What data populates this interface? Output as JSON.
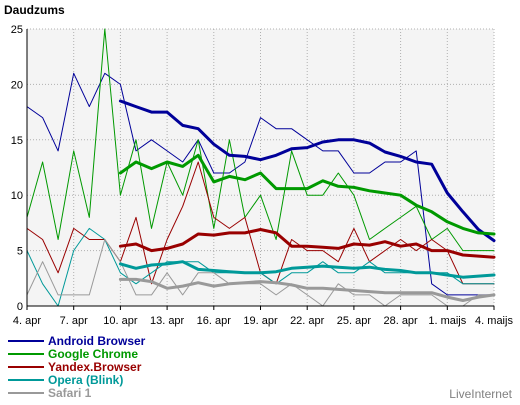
{
  "chart_data": {
    "type": "line",
    "ylabel": "Daudzums",
    "xlabel": "",
    "ylim": [
      0,
      25
    ],
    "yticks": [
      0,
      5,
      10,
      15,
      20,
      25
    ],
    "x": [
      "4. apr",
      "5. apr",
      "6. apr",
      "7. apr",
      "8. apr",
      "9. apr",
      "10. apr",
      "11. apr",
      "12. apr",
      "13. apr",
      "14. apr",
      "15. apr",
      "16. apr",
      "17. apr",
      "18. apr",
      "19. apr",
      "20. apr",
      "21. apr",
      "22. apr",
      "23. apr",
      "24. apr",
      "25. apr",
      "26. apr",
      "27. apr",
      "28. apr",
      "29. apr",
      "30. apr",
      "1. maijs",
      "2. maijs",
      "3. maijs",
      "4. maijs"
    ],
    "xticks": [
      "4. apr",
      "7. apr",
      "10. apr",
      "13. apr",
      "16. apr",
      "19. apr",
      "22. apr",
      "25. apr",
      "28. apr",
      "1. maijs",
      "4. maijs"
    ],
    "grid": true,
    "legend_position": "bottom-left",
    "series": [
      {
        "name": "Android Browser",
        "color": "#000099",
        "daily": [
          18,
          17,
          14,
          21,
          18,
          21,
          20,
          14,
          15,
          14,
          13,
          15,
          12,
          12,
          13,
          17,
          16,
          16,
          15,
          14,
          14,
          12,
          12,
          13,
          13,
          14,
          2,
          1,
          1,
          1,
          1
        ],
        "trend": [
          null,
          null,
          null,
          null,
          null,
          null,
          18.5,
          18,
          17.5,
          17.5,
          16.3,
          16,
          14.6,
          13.6,
          13.5,
          13.2,
          13.6,
          14.2,
          14.3,
          14.8,
          15,
          15,
          14.7,
          13.9,
          13.5,
          13,
          12.8,
          10.2,
          8.5,
          6.9,
          5.9
        ]
      },
      {
        "name": "Google Chrome",
        "color": "#009900",
        "daily": [
          8,
          13,
          6,
          14,
          8,
          25,
          10,
          15,
          7,
          13,
          10,
          15,
          7,
          15,
          8,
          10,
          6,
          14,
          10,
          10,
          12,
          10,
          6,
          7,
          8,
          9,
          6,
          7,
          5,
          5,
          5
        ],
        "trend": [
          null,
          null,
          null,
          null,
          null,
          null,
          12,
          13,
          12.4,
          13,
          12.6,
          13.6,
          11.2,
          11.7,
          11.4,
          12,
          10.6,
          10.6,
          10.6,
          11.3,
          10.8,
          10.7,
          10.4,
          10.2,
          10,
          9.1,
          8.5,
          7.6,
          7,
          6.6,
          6.5
        ]
      },
      {
        "name": "Yandex.Browser",
        "color": "#990000",
        "daily": [
          7,
          6,
          3,
          7,
          6,
          6,
          4,
          8,
          2,
          6,
          9,
          13,
          8,
          7,
          8,
          3,
          2,
          6,
          5,
          5,
          4,
          7,
          4,
          5,
          6,
          5,
          6,
          5,
          2,
          2,
          2
        ],
        "trend": [
          null,
          null,
          null,
          null,
          null,
          null,
          5.4,
          5.6,
          5,
          5.2,
          5.6,
          6.5,
          6.4,
          6.6,
          6.6,
          6.9,
          6.6,
          5.4,
          5.4,
          5.3,
          5.2,
          5.6,
          5.5,
          5.8,
          5.4,
          5.6,
          5,
          5,
          4.6,
          4.5,
          4.4
        ]
      },
      {
        "name": "Opera (Blink)",
        "color": "#009999",
        "daily": [
          5,
          2,
          0,
          5,
          7,
          6,
          3,
          2,
          3,
          4,
          4,
          4,
          3,
          3,
          3,
          3,
          2,
          3,
          3,
          4,
          3,
          3,
          4,
          3,
          3,
          3,
          3,
          3,
          2,
          2,
          2
        ],
        "trend": [
          null,
          null,
          null,
          null,
          null,
          null,
          3.8,
          3.4,
          3.7,
          3.8,
          4,
          3.3,
          3.2,
          3.1,
          3,
          3,
          3.1,
          3.4,
          3.5,
          3.6,
          3.5,
          3.4,
          3.5,
          3.3,
          3.2,
          3,
          3,
          2.8,
          2.6,
          2.7,
          2.8
        ]
      },
      {
        "name": "Safari 1",
        "color": "#999999",
        "daily": [
          1,
          4,
          1,
          1,
          1,
          6,
          4,
          1,
          1,
          3,
          1,
          3,
          3,
          2,
          2,
          2,
          1,
          2,
          1,
          0,
          2,
          1,
          1,
          0,
          1,
          1,
          1,
          0,
          0,
          1,
          1
        ],
        "trend": [
          null,
          null,
          null,
          null,
          null,
          null,
          2.4,
          2.4,
          2.2,
          1.6,
          1.8,
          2.1,
          1.8,
          2,
          2.1,
          2.2,
          2.1,
          1.9,
          1.6,
          1.6,
          1.5,
          1.4,
          1.3,
          1.2,
          1.2,
          1.2,
          1.2,
          0.8,
          0.5,
          0.8,
          1
        ]
      }
    ]
  },
  "credit": "LiveInternet"
}
